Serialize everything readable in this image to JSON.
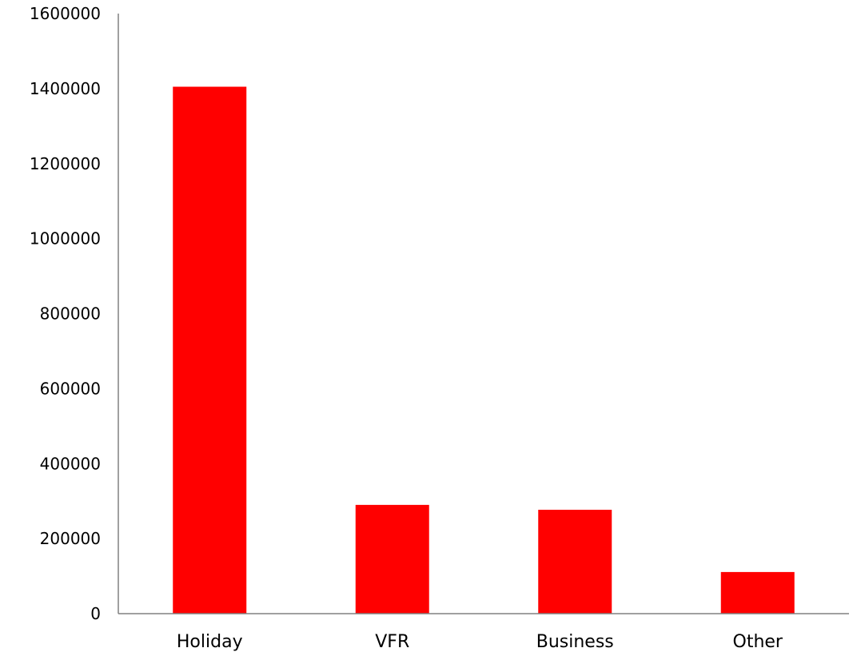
{
  "chart_data": {
    "type": "bar",
    "title": "",
    "xlabel": "",
    "ylabel": "",
    "categories": [
      "Holiday",
      "VFR",
      "Business",
      "Other"
    ],
    "values": [
      1405000,
      290000,
      277000,
      111000
    ],
    "ylim": [
      0,
      1600000
    ],
    "yticks": [
      "0",
      "200000",
      "400000",
      "600000",
      "800000",
      "1000000",
      "1200000",
      "1400000",
      "1600000"
    ],
    "grid": false,
    "legend": "none",
    "colors": {
      "bar": "#ff0000",
      "axis": "#808080",
      "text": "#000000"
    }
  }
}
